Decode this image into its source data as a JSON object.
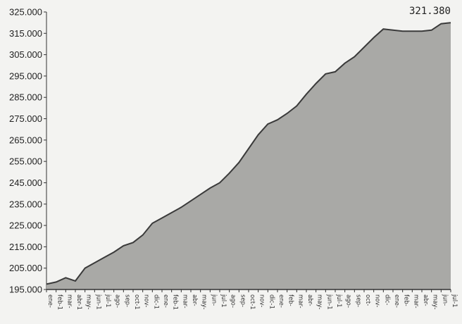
{
  "chart_data": {
    "type": "area",
    "title": "",
    "xlabel": "",
    "ylabel": "",
    "ylim": [
      195000,
      325000
    ],
    "y_ticks": [
      "325.000",
      "315.000",
      "305.000",
      "295.000",
      "285.000",
      "275.000",
      "265.000",
      "255.000",
      "245.000",
      "235.000",
      "225.000",
      "215.000",
      "205.000",
      "195.000"
    ],
    "x_ticks": [
      "ene-",
      "feb-1",
      "mar-",
      "abr-1",
      "may-",
      "jun-1",
      "jul-1",
      "ago-",
      "sep-",
      "oct-1",
      "nov-",
      "dic-1",
      "ene-",
      "feb-1",
      "mar-",
      "abr-",
      "may-",
      "jun-",
      "jul-1",
      "ago-",
      "sep-",
      "oct-1",
      "nov-",
      "dic-1",
      "ene-",
      "feb-",
      "mar-",
      "abr-",
      "may-",
      "jun-1",
      "jul-1",
      "ago-",
      "sep-",
      "oct-",
      "nov-",
      "dic-",
      "ene-",
      "feb-",
      "mar-",
      "abr-",
      "may-",
      "jun-",
      "jul-1"
    ],
    "values": [
      197500,
      198500,
      200500,
      199000,
      205000,
      207500,
      210000,
      212500,
      215500,
      217000,
      220500,
      226000,
      228500,
      231000,
      233500,
      236500,
      239500,
      242500,
      245000,
      249500,
      254500,
      261000,
      267500,
      272500,
      274500,
      277500,
      281000,
      286500,
      291500,
      296000,
      297000,
      301000,
      304000,
      308500,
      313000,
      317000,
      316500,
      316000,
      316000,
      316000,
      316500,
      319500,
      320000
    ],
    "annotations": [
      {
        "text": "321.380"
      }
    ],
    "fill_color": "#a9a9a6",
    "line_color": "#3a3a3a",
    "grid": false
  }
}
